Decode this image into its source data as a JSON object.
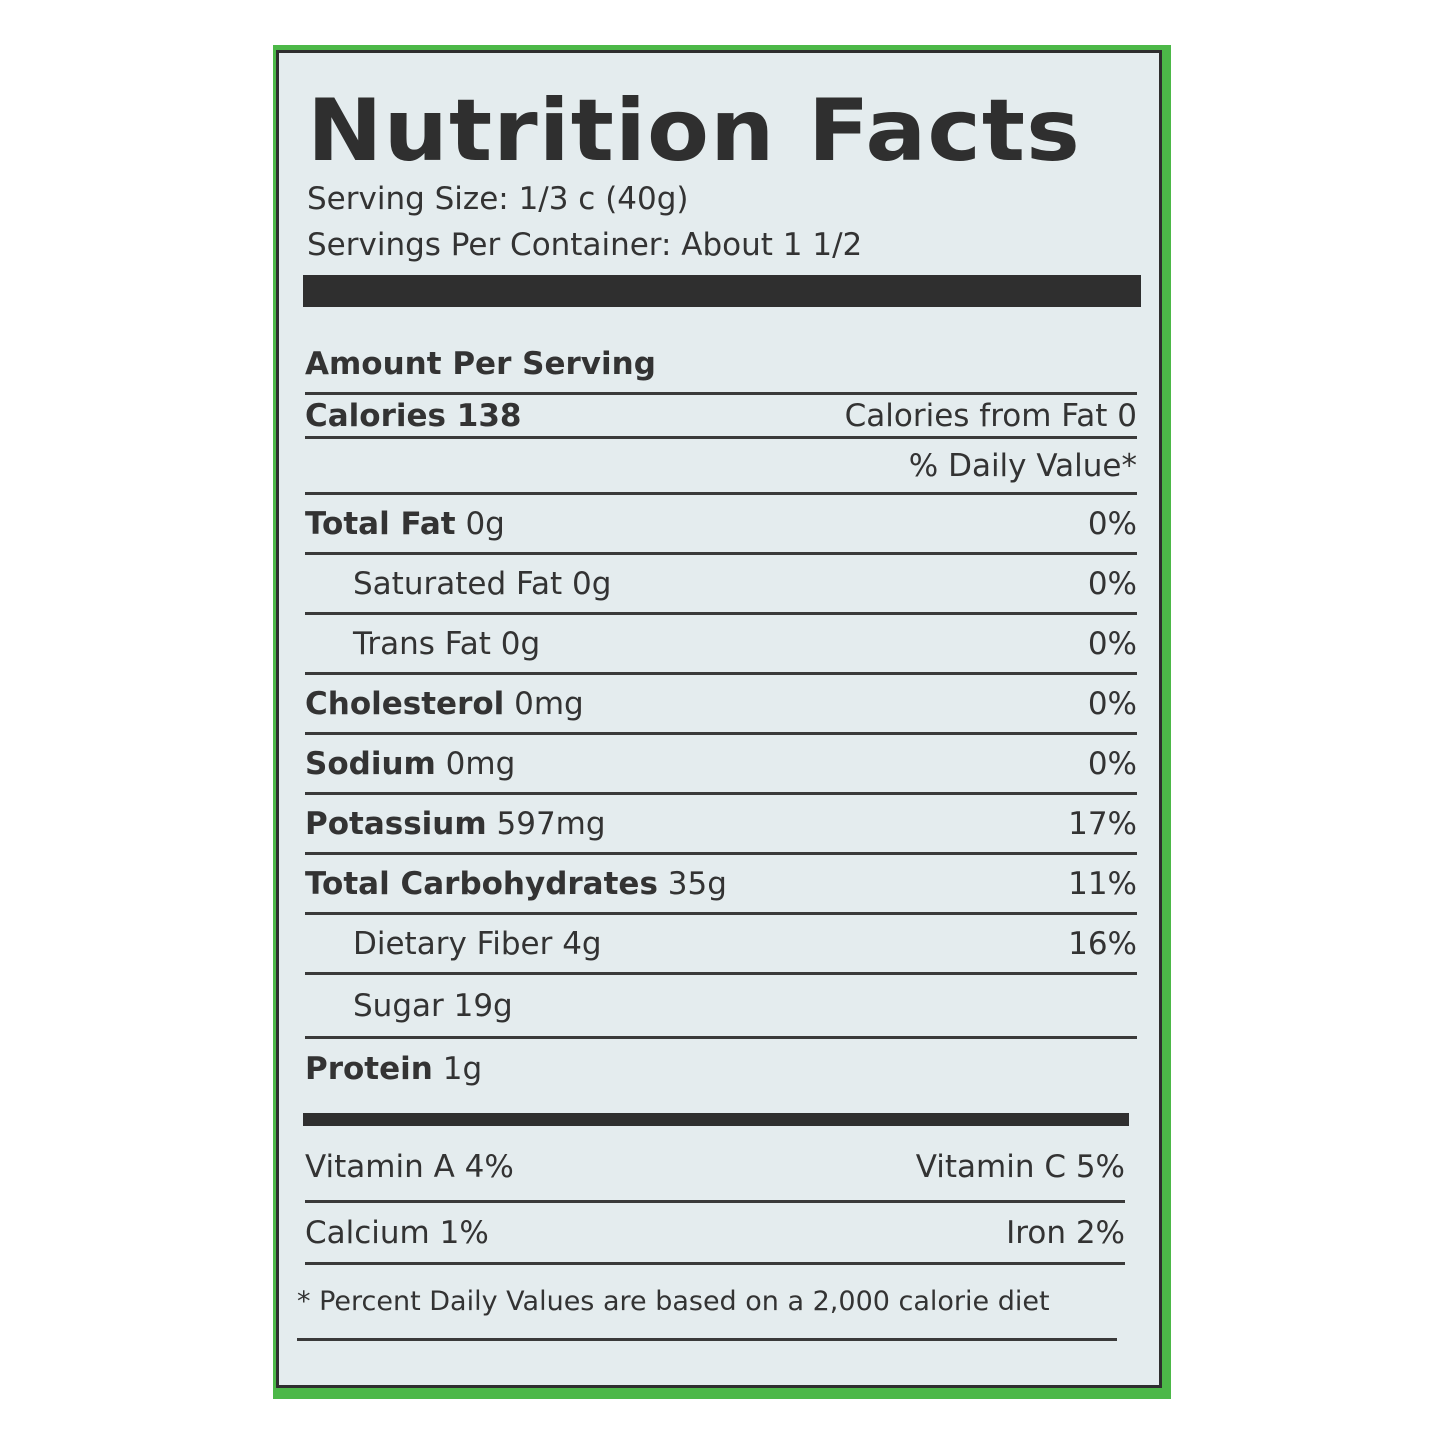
{
  "label": {
    "title": "Nutrition Facts",
    "serving_size": "Serving Size: 1/3 c (40g)",
    "servings_per_container": "Servings Per Container: About 1 1/2",
    "amount_per_serving": "Amount Per Serving",
    "calories": {
      "name": "Calories",
      "value": "138"
    },
    "calories_from_fat": "Calories from Fat 0",
    "daily_value_header": "% Daily Value*",
    "nutrients": [
      {
        "name": "Total Fat",
        "amount": "0g",
        "dv": "0%"
      },
      {
        "name": "Saturated Fat",
        "amount": "0g",
        "dv": "0%"
      },
      {
        "name": "Trans Fat",
        "amount": "0g",
        "dv": "0%"
      },
      {
        "name": "Cholesterol",
        "amount": "0mg",
        "dv": "0%"
      },
      {
        "name": "Sodium",
        "amount": "0mg",
        "dv": "0%"
      },
      {
        "name": "Potassium",
        "amount": "597mg",
        "dv": "17%"
      },
      {
        "name": "Total Carbohydrates",
        "amount": "35g",
        "dv": "11%"
      },
      {
        "name": "Dietary Fiber",
        "amount": "4g",
        "dv": "16%"
      },
      {
        "name": "Sugar",
        "amount": "19g",
        "dv": ""
      },
      {
        "name": "Protein",
        "amount": "1g",
        "dv": ""
      }
    ],
    "vitamins": {
      "vitamin_a": "Vitamin A 4%",
      "vitamin_c": "Vitamin C 5%",
      "calcium": "Calcium 1%",
      "iron": "Iron 2%"
    },
    "footnote": "* Percent Daily Values are based on a 2,000 calorie diet"
  },
  "colors": {
    "border_green": "#4cb848",
    "panel": "#e4ecee",
    "ink": "#2f2f2f"
  }
}
